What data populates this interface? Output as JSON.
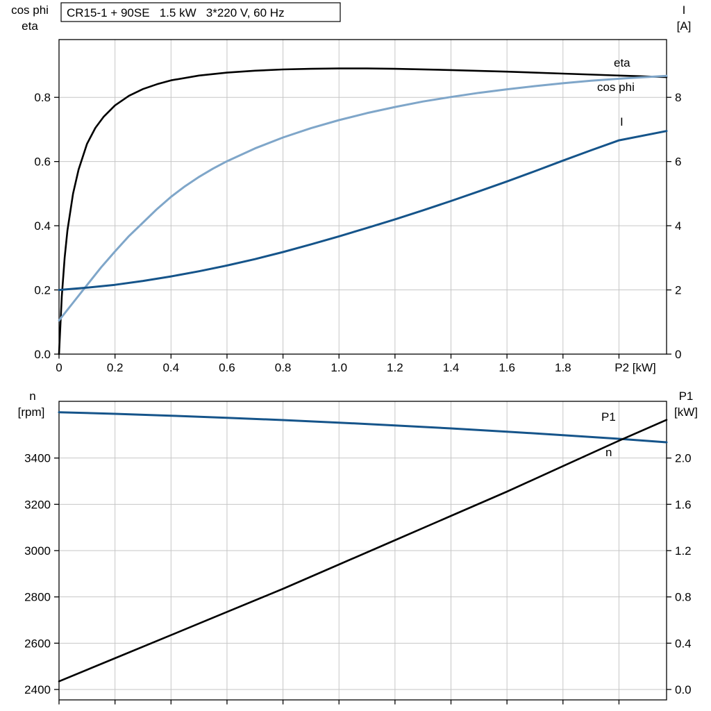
{
  "title_box": {
    "text": "CR15-1 + 90SE   1.5 kW   3*220 V, 60 Hz"
  },
  "colors": {
    "black": "#000000",
    "light_blue": "#7fa6c9",
    "dark_blue": "#15548a",
    "grid": "#c6c6c6",
    "axis": "#000000",
    "background": "#ffffff"
  },
  "chart_data": [
    {
      "id": "motor-electrical-curves",
      "type": "line",
      "title": "CR15-1 + 90SE   1.5 kW   3*220 V, 60 Hz",
      "x_axis": {
        "label": "P2 [kW]",
        "range": [
          0,
          2.17
        ],
        "ticks": [
          0,
          0.2,
          0.4,
          0.6,
          0.8,
          1.0,
          1.2,
          1.4,
          1.6,
          1.8,
          2.0
        ],
        "tick_labels": [
          "0",
          "0.2",
          "0.4",
          "0.6",
          "0.8",
          "1.0",
          "1.2",
          "1.4",
          "1.6",
          "1.8",
          ""
        ]
      },
      "left_axis": {
        "label_lines": [
          "cos phi",
          "eta"
        ],
        "range": [
          0,
          0.98
        ],
        "ticks": [
          0,
          0.2,
          0.4,
          0.6,
          0.8
        ],
        "tick_labels": [
          "0.0",
          "0.2",
          "0.4",
          "0.6",
          "0.8"
        ]
      },
      "right_axis": {
        "label_lines": [
          "I",
          "[A]"
        ],
        "range": [
          0,
          9.8
        ],
        "ticks": [
          0,
          2,
          4,
          6,
          8
        ],
        "tick_labels": [
          "0",
          "2",
          "4",
          "6",
          "8"
        ]
      },
      "grid": true,
      "legend_position": "inline-labels",
      "series": [
        {
          "name": "eta",
          "label": "eta",
          "axis": "left",
          "color": "black",
          "width": 2.6,
          "x": [
            0,
            0.01,
            0.02,
            0.03,
            0.05,
            0.07,
            0.1,
            0.13,
            0.16,
            0.2,
            0.25,
            0.3,
            0.35,
            0.4,
            0.5,
            0.6,
            0.7,
            0.8,
            0.9,
            1.0,
            1.1,
            1.2,
            1.4,
            1.6,
            1.8,
            2.0,
            2.17
          ],
          "y": [
            0,
            0.18,
            0.3,
            0.385,
            0.5,
            0.575,
            0.655,
            0.705,
            0.74,
            0.775,
            0.805,
            0.826,
            0.841,
            0.853,
            0.868,
            0.877,
            0.883,
            0.887,
            0.889,
            0.89,
            0.89,
            0.889,
            0.885,
            0.88,
            0.874,
            0.868,
            0.863
          ]
        },
        {
          "name": "cos phi",
          "label": "cos phi",
          "axis": "left",
          "color": "light_blue",
          "width": 3,
          "x": [
            0,
            0.05,
            0.1,
            0.15,
            0.2,
            0.25,
            0.3,
            0.35,
            0.4,
            0.45,
            0.5,
            0.55,
            0.6,
            0.7,
            0.8,
            0.9,
            1.0,
            1.1,
            1.2,
            1.3,
            1.4,
            1.5,
            1.6,
            1.7,
            1.8,
            1.9,
            2.0,
            2.17
          ],
          "y": [
            0.105,
            0.16,
            0.215,
            0.27,
            0.32,
            0.368,
            0.41,
            0.452,
            0.49,
            0.523,
            0.552,
            0.578,
            0.601,
            0.641,
            0.675,
            0.704,
            0.729,
            0.751,
            0.77,
            0.787,
            0.801,
            0.814,
            0.825,
            0.835,
            0.844,
            0.852,
            0.858,
            0.867
          ]
        },
        {
          "name": "I",
          "label": "I",
          "axis": "right",
          "color": "dark_blue",
          "width": 3,
          "x": [
            0,
            0.1,
            0.2,
            0.3,
            0.4,
            0.5,
            0.6,
            0.7,
            0.8,
            0.9,
            1.0,
            1.1,
            1.2,
            1.3,
            1.4,
            1.5,
            1.6,
            1.7,
            1.8,
            1.9,
            2.0,
            2.17
          ],
          "y": [
            2.0,
            2.07,
            2.16,
            2.28,
            2.42,
            2.58,
            2.76,
            2.96,
            3.18,
            3.42,
            3.67,
            3.93,
            4.2,
            4.48,
            4.77,
            5.07,
            5.38,
            5.7,
            6.03,
            6.35,
            6.66,
            6.95
          ]
        }
      ]
    },
    {
      "id": "motor-speed-power-curves",
      "type": "line",
      "x_axis": {
        "label": "",
        "range": [
          0,
          2.17
        ],
        "ticks": [
          0,
          0.2,
          0.4,
          0.6,
          0.8,
          1.0,
          1.2,
          1.4,
          1.6,
          1.8,
          2.0
        ],
        "tick_labels": [
          "",
          "",
          "",
          "",
          "",
          "",
          "",
          "",
          "",
          "",
          ""
        ]
      },
      "left_axis": {
        "label_lines": [
          "n",
          "[rpm]"
        ],
        "range": [
          2355,
          3645
        ],
        "ticks": [
          2400,
          2600,
          2800,
          3000,
          3200,
          3400
        ],
        "tick_labels": [
          "2400",
          "2600",
          "2800",
          "3000",
          "3200",
          "3400"
        ]
      },
      "right_axis": {
        "label_lines": [
          "P1",
          "[kW]"
        ],
        "range": [
          -0.09,
          2.49
        ],
        "ticks": [
          0.0,
          0.4,
          0.8,
          1.2,
          1.6,
          2.0
        ],
        "tick_labels": [
          "0.0",
          "0.4",
          "0.8",
          "1.2",
          "1.6",
          "2.0"
        ]
      },
      "grid": true,
      "legend_position": "inline-labels",
      "series": [
        {
          "name": "n",
          "label": "n",
          "axis": "left",
          "color": "dark_blue",
          "width": 3,
          "x": [
            0,
            0.2,
            0.4,
            0.6,
            0.8,
            1.0,
            1.2,
            1.4,
            1.6,
            1.8,
            2.0,
            2.17
          ],
          "y": [
            3598,
            3591,
            3583,
            3574,
            3564,
            3553,
            3541,
            3528,
            3514,
            3499,
            3483,
            3468
          ]
        },
        {
          "name": "P1",
          "label": "P1",
          "axis": "right",
          "color": "black",
          "width": 2.6,
          "x": [
            0,
            0.2,
            0.4,
            0.6,
            0.8,
            1.0,
            1.2,
            1.4,
            1.6,
            1.8,
            2.0,
            2.17
          ],
          "y": [
            0.07,
            0.27,
            0.47,
            0.67,
            0.87,
            1.08,
            1.29,
            1.5,
            1.71,
            1.93,
            2.15,
            2.33
          ]
        }
      ]
    }
  ]
}
